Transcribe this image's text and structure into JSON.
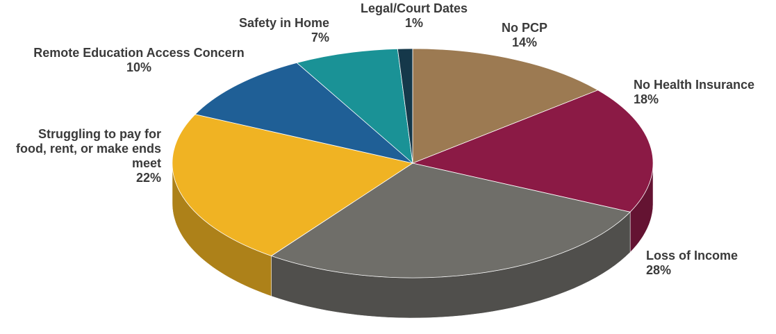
{
  "chart_data": {
    "type": "pie",
    "categories": [
      "No PCP",
      "No Health Insurance",
      "Loss of Income",
      "Struggling to pay for food, rent, or make ends meet",
      "Remote Education Access Concern",
      "Safety in Home",
      "Legal/Court Dates"
    ],
    "values": [
      14,
      18,
      28,
      22,
      10,
      7,
      1
    ],
    "value_labels": [
      "14%",
      "18%",
      "28%",
      "22%",
      "10%",
      "7%",
      "1%"
    ],
    "colors": [
      "#9c7a52",
      "#8b1a45",
      "#6f6e69",
      "#f0b323",
      "#1f5f96",
      "#1a9296",
      "#15384a"
    ]
  }
}
